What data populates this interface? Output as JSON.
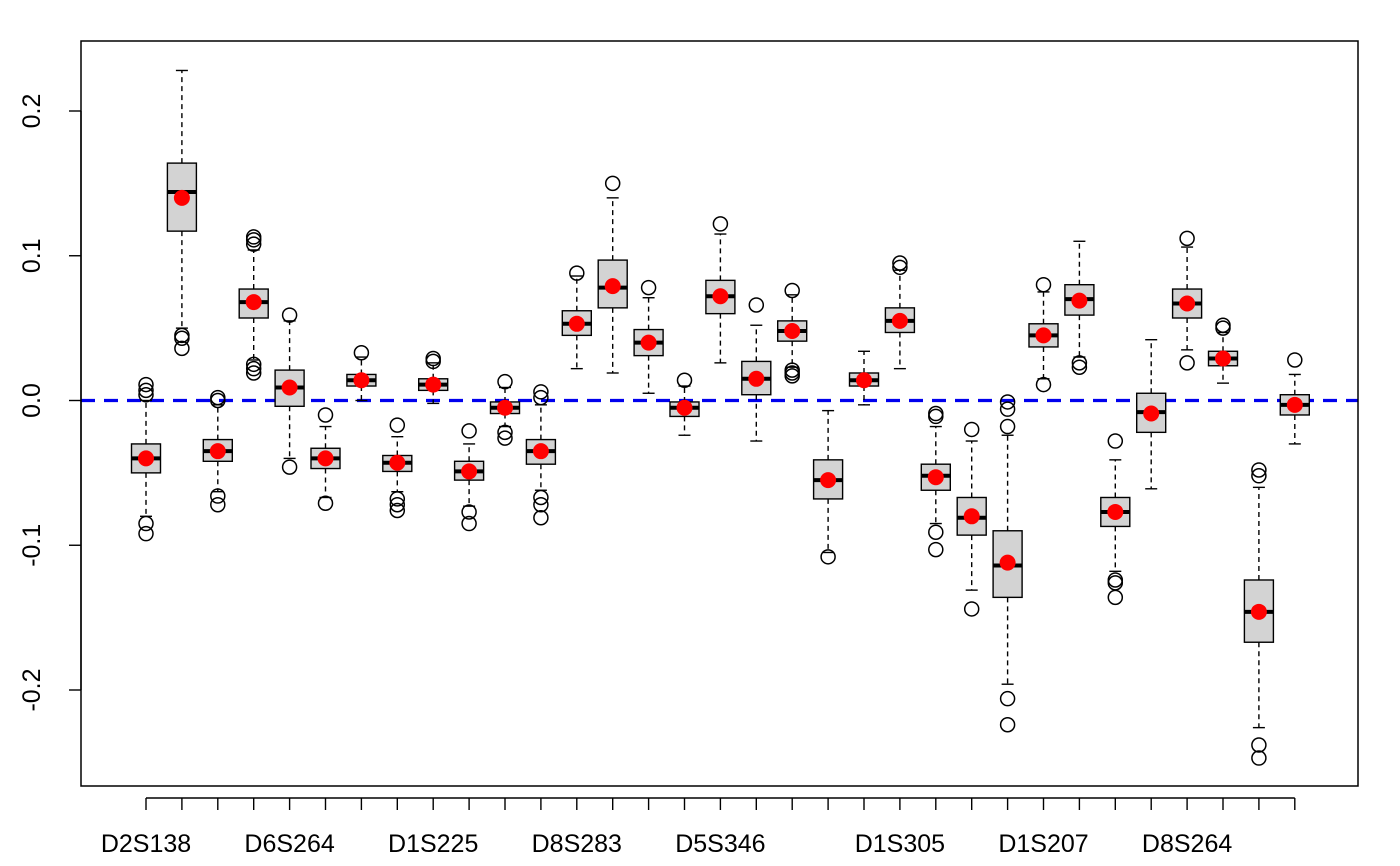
{
  "chart_data": {
    "type": "box",
    "title": "",
    "xlabel": "",
    "ylabel": "",
    "ylim": [
      -0.265,
      0.245
    ],
    "yticks": [
      -0.2,
      -0.1,
      0.0,
      0.1,
      0.2
    ],
    "ytick_labels": [
      "-0.2",
      "-0.1",
      "0.0",
      "0.1",
      "0.2"
    ],
    "x_tick_labels": [
      {
        "pos": 1,
        "label": "D2S138"
      },
      {
        "pos": 5,
        "label": "D6S264"
      },
      {
        "pos": 9,
        "label": "D1S225"
      },
      {
        "pos": 13,
        "label": "D8S283"
      },
      {
        "pos": 17,
        "label": "D5S346"
      },
      {
        "pos": 22,
        "label": "D1S305"
      },
      {
        "pos": 26,
        "label": "D1S207"
      },
      {
        "pos": 30,
        "label": "D8S264"
      }
    ],
    "reference_line": {
      "y": 0.0,
      "color": "#0000ee",
      "style": "dashed"
    },
    "box_fill": "#d3d3d3",
    "mean_color": "#ff0000",
    "boxes": [
      {
        "q1": -0.05,
        "median": -0.04,
        "q3": -0.03,
        "wlo": -0.08,
        "whi": 0.0,
        "mean": -0.04,
        "outliers": [
          -0.085,
          -0.092,
          0.004,
          0.007,
          0.011
        ]
      },
      {
        "q1": 0.117,
        "median": 0.144,
        "q3": 0.164,
        "wlo": 0.05,
        "whi": 0.228,
        "mean": 0.14,
        "outliers": [
          0.045,
          0.043,
          0.036
        ]
      },
      {
        "q1": -0.042,
        "median": -0.035,
        "q3": -0.027,
        "wlo": -0.063,
        "whi": -0.003,
        "mean": -0.035,
        "outliers": [
          -0.066,
          -0.072,
          0.0,
          0.002
        ]
      },
      {
        "q1": 0.057,
        "median": 0.068,
        "q3": 0.077,
        "wlo": 0.028,
        "whi": 0.104,
        "mean": 0.068,
        "outliers": [
          0.025,
          0.022,
          0.019,
          0.108,
          0.111,
          0.113
        ]
      },
      {
        "q1": -0.004,
        "median": 0.009,
        "q3": 0.021,
        "wlo": -0.04,
        "whi": 0.055,
        "mean": 0.009,
        "outliers": [
          -0.046,
          0.059
        ]
      },
      {
        "q1": -0.047,
        "median": -0.04,
        "q3": -0.033,
        "wlo": -0.067,
        "whi": -0.018,
        "mean": -0.04,
        "outliers": [
          -0.071,
          -0.01
        ]
      },
      {
        "q1": 0.01,
        "median": 0.014,
        "q3": 0.018,
        "wlo": 0.0,
        "whi": 0.03,
        "mean": 0.014,
        "outliers": [
          0.033
        ]
      },
      {
        "q1": -0.049,
        "median": -0.043,
        "q3": -0.038,
        "wlo": -0.063,
        "whi": -0.025,
        "mean": -0.043,
        "outliers": [
          -0.068,
          -0.072,
          -0.076,
          -0.017
        ]
      },
      {
        "q1": 0.007,
        "median": 0.011,
        "q3": 0.015,
        "wlo": -0.002,
        "whi": 0.026,
        "mean": 0.011,
        "outliers": [
          0.027,
          0.029
        ]
      },
      {
        "q1": -0.055,
        "median": -0.049,
        "q3": -0.042,
        "wlo": -0.073,
        "whi": -0.03,
        "mean": -0.049,
        "outliers": [
          -0.077,
          -0.085,
          -0.021
        ]
      },
      {
        "q1": -0.009,
        "median": -0.005,
        "q3": -0.001,
        "wlo": -0.018,
        "whi": 0.009,
        "mean": -0.005,
        "outliers": [
          -0.022,
          -0.026,
          0.013
        ]
      },
      {
        "q1": -0.044,
        "median": -0.035,
        "q3": -0.027,
        "wlo": -0.062,
        "whi": -0.003,
        "mean": -0.035,
        "outliers": [
          -0.067,
          -0.072,
          -0.081,
          0.002,
          0.006
        ]
      },
      {
        "q1": 0.045,
        "median": 0.053,
        "q3": 0.062,
        "wlo": 0.022,
        "whi": 0.086,
        "mean": 0.053,
        "outliers": [
          0.088
        ]
      },
      {
        "q1": 0.064,
        "median": 0.078,
        "q3": 0.097,
        "wlo": 0.019,
        "whi": 0.14,
        "mean": 0.079,
        "outliers": [
          0.15
        ]
      },
      {
        "q1": 0.031,
        "median": 0.04,
        "q3": 0.049,
        "wlo": 0.005,
        "whi": 0.071,
        "mean": 0.04,
        "outliers": [
          0.078
        ]
      },
      {
        "q1": -0.011,
        "median": -0.005,
        "q3": -0.001,
        "wlo": -0.024,
        "whi": 0.01,
        "mean": -0.005,
        "outliers": [
          0.014
        ]
      },
      {
        "q1": 0.06,
        "median": 0.072,
        "q3": 0.083,
        "wlo": 0.026,
        "whi": 0.115,
        "mean": 0.072,
        "outliers": [
          0.122
        ]
      },
      {
        "q1": 0.004,
        "median": 0.015,
        "q3": 0.027,
        "wlo": -0.028,
        "whi": 0.052,
        "mean": 0.015,
        "outliers": [
          0.066
        ]
      },
      {
        "q1": 0.041,
        "median": 0.048,
        "q3": 0.055,
        "wlo": 0.023,
        "whi": 0.073,
        "mean": 0.048,
        "outliers": [
          0.017,
          0.019,
          0.021,
          0.076
        ]
      },
      {
        "q1": -0.068,
        "median": -0.055,
        "q3": -0.041,
        "wlo": -0.105,
        "whi": -0.007,
        "mean": -0.055,
        "outliers": [
          -0.108
        ]
      },
      {
        "q1": 0.01,
        "median": 0.014,
        "q3": 0.019,
        "wlo": -0.003,
        "whi": 0.034,
        "mean": 0.014,
        "outliers": []
      },
      {
        "q1": 0.047,
        "median": 0.055,
        "q3": 0.064,
        "wlo": 0.022,
        "whi": 0.09,
        "mean": 0.055,
        "outliers": [
          0.092,
          0.095
        ]
      },
      {
        "q1": -0.062,
        "median": -0.052,
        "q3": -0.044,
        "wlo": -0.085,
        "whi": -0.018,
        "mean": -0.053,
        "outliers": [
          -0.091,
          -0.103,
          -0.011,
          -0.009
        ]
      },
      {
        "q1": -0.093,
        "median": -0.081,
        "q3": -0.067,
        "wlo": -0.131,
        "whi": -0.028,
        "mean": -0.08,
        "outliers": [
          -0.144,
          -0.02
        ]
      },
      {
        "q1": -0.136,
        "median": -0.114,
        "q3": -0.09,
        "wlo": -0.196,
        "whi": -0.024,
        "mean": -0.112,
        "outliers": [
          -0.206,
          -0.224,
          -0.018,
          -0.006,
          -0.001
        ]
      },
      {
        "q1": 0.037,
        "median": 0.045,
        "q3": 0.053,
        "wlo": 0.015,
        "whi": 0.075,
        "mean": 0.045,
        "outliers": [
          0.011,
          0.08
        ]
      },
      {
        "q1": 0.059,
        "median": 0.07,
        "q3": 0.08,
        "wlo": 0.03,
        "whi": 0.11,
        "mean": 0.069,
        "outliers": [
          0.026,
          0.023
        ]
      },
      {
        "q1": -0.087,
        "median": -0.077,
        "q3": -0.067,
        "wlo": -0.118,
        "whi": -0.041,
        "mean": -0.077,
        "outliers": [
          -0.124,
          -0.126,
          -0.136,
          -0.028
        ]
      },
      {
        "q1": -0.022,
        "median": -0.008,
        "q3": 0.005,
        "wlo": -0.061,
        "whi": 0.042,
        "mean": -0.009,
        "outliers": []
      },
      {
        "q1": 0.057,
        "median": 0.067,
        "q3": 0.077,
        "wlo": 0.035,
        "whi": 0.106,
        "mean": 0.067,
        "outliers": [
          0.026,
          0.112
        ]
      },
      {
        "q1": 0.024,
        "median": 0.029,
        "q3": 0.034,
        "wlo": 0.012,
        "whi": 0.047,
        "mean": 0.029,
        "outliers": [
          0.05,
          0.052
        ]
      },
      {
        "q1": -0.167,
        "median": -0.146,
        "q3": -0.124,
        "wlo": -0.226,
        "whi": -0.06,
        "mean": -0.146,
        "outliers": [
          -0.238,
          -0.247,
          -0.052,
          -0.048
        ]
      },
      {
        "q1": -0.01,
        "median": -0.003,
        "q3": 0.004,
        "wlo": -0.03,
        "whi": 0.018,
        "mean": -0.003,
        "outliers": [
          0.028
        ]
      }
    ]
  }
}
